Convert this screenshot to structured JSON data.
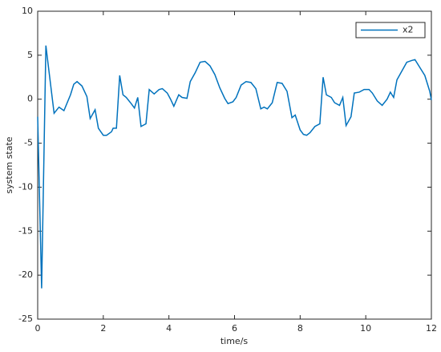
{
  "chart_data": {
    "type": "line",
    "x_label": "time/s",
    "y_label": "system state",
    "x": [
      0,
      0.12,
      0.25,
      0.35,
      0.5,
      0.65,
      0.8,
      1.0,
      1.1,
      1.2,
      1.35,
      1.5,
      1.6,
      1.75,
      1.85,
      2.0,
      2.1,
      2.25,
      2.3,
      2.4,
      2.5,
      2.6,
      2.7,
      2.85,
      2.95,
      3.05,
      3.15,
      3.3,
      3.4,
      3.55,
      3.7,
      3.8,
      3.95,
      4.05,
      4.15,
      4.3,
      4.4,
      4.55,
      4.65,
      4.8,
      4.95,
      5.1,
      5.25,
      5.4,
      5.55,
      5.7,
      5.8,
      5.95,
      6.05,
      6.2,
      6.35,
      6.5,
      6.65,
      6.8,
      6.9,
      7.0,
      7.15,
      7.3,
      7.45,
      7.6,
      7.75,
      7.85,
      8.0,
      8.1,
      8.2,
      8.3,
      8.45,
      8.6,
      8.7,
      8.8,
      8.95,
      9.05,
      9.2,
      9.3,
      9.4,
      9.55,
      9.65,
      9.8,
      9.95,
      10.1,
      10.2,
      10.35,
      10.5,
      10.65,
      10.75,
      10.85,
      10.95,
      11.1,
      11.25,
      11.4,
      11.5,
      11.65,
      11.8,
      11.95,
      12.0
    ],
    "series": [
      {
        "name": "x2",
        "color": "#0072bd",
        "values": [
          -2,
          -21.5,
          6.1,
          3,
          -1.6,
          -0.9,
          -1.3,
          0.5,
          1.7,
          2.0,
          1.5,
          0.3,
          -2.2,
          -1.2,
          -3.3,
          -4.1,
          -4.1,
          -3.7,
          -3.3,
          -3.3,
          2.7,
          0.5,
          0.2,
          -0.5,
          -1.0,
          0.2,
          -3.1,
          -2.8,
          1.1,
          0.6,
          1.1,
          1.2,
          0.7,
          0,
          -0.8,
          0.5,
          0.2,
          0.1,
          2.0,
          3.0,
          4.2,
          4.3,
          3.8,
          2.8,
          1.3,
          0.1,
          -0.5,
          -0.3,
          0.2,
          1.6,
          2.0,
          1.9,
          1.2,
          -1.1,
          -0.9,
          -1.1,
          -0.4,
          1.9,
          1.8,
          0.9,
          -2.1,
          -1.8,
          -3.5,
          -4.0,
          -4.1,
          -3.8,
          -3.1,
          -2.8,
          2.5,
          0.5,
          0.2,
          -0.4,
          -0.7,
          0.2,
          -3.0,
          -2.0,
          0.7,
          0.8,
          1.1,
          1.1,
          0.7,
          -0.2,
          -0.7,
          0,
          0.8,
          0.2,
          2.2,
          3.2,
          4.2,
          4.4,
          4.5,
          3.6,
          2.7,
          0.9,
          -0.1
        ]
      }
    ],
    "xlim": [
      0,
      12
    ],
    "xticks": [
      0,
      2,
      4,
      6,
      8,
      10,
      12
    ],
    "ylim": [
      -25,
      10
    ],
    "yticks": [
      -25,
      -20,
      -15,
      -10,
      -5,
      0,
      5,
      10
    ],
    "legend": "top-right"
  }
}
